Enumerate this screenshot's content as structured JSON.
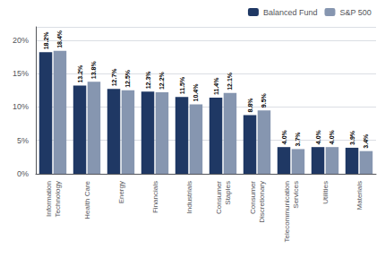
{
  "chart_data": {
    "type": "bar",
    "categories": [
      "Information\nTechnology",
      "Health Care",
      "Energy",
      "Financials",
      "Industrials",
      "Consumer\nStaples",
      "Consumer\nDiscretionary",
      "Telecommunication\nServices",
      "Utilities",
      "Materials"
    ],
    "series": [
      {
        "name": "Balanced Fund",
        "color": "#1f3864",
        "values": [
          18.2,
          13.2,
          12.7,
          12.3,
          11.5,
          11.4,
          8.8,
          4.0,
          4.0,
          3.9
        ],
        "value_labels": [
          "18.2%",
          "13.2%",
          "12.7%",
          "12.3%",
          "11.5%",
          "11.4%",
          "8.8%",
          "4.0%",
          "4.0%",
          "3.9%"
        ]
      },
      {
        "name": "S&P 500",
        "color": "#8696b0",
        "values": [
          18.4,
          13.8,
          12.5,
          12.2,
          10.4,
          12.1,
          9.5,
          3.7,
          4.0,
          3.4
        ],
        "value_labels": [
          "18.4%",
          "13.8%",
          "12.5%",
          "12.2%",
          "10.4%",
          "12.1%",
          "9.5%",
          "3.7%",
          "4.0%",
          "3.4%"
        ]
      }
    ],
    "ylim": [
      0,
      22
    ],
    "yticks": [
      {
        "value": 0,
        "label": "0%"
      },
      {
        "value": 5,
        "label": "5%"
      },
      {
        "value": 10,
        "label": "10%"
      },
      {
        "value": 15,
        "label": "15%"
      },
      {
        "value": 20,
        "label": "20%"
      }
    ],
    "grid": true,
    "legend": "upper right",
    "data_labels": true
  }
}
